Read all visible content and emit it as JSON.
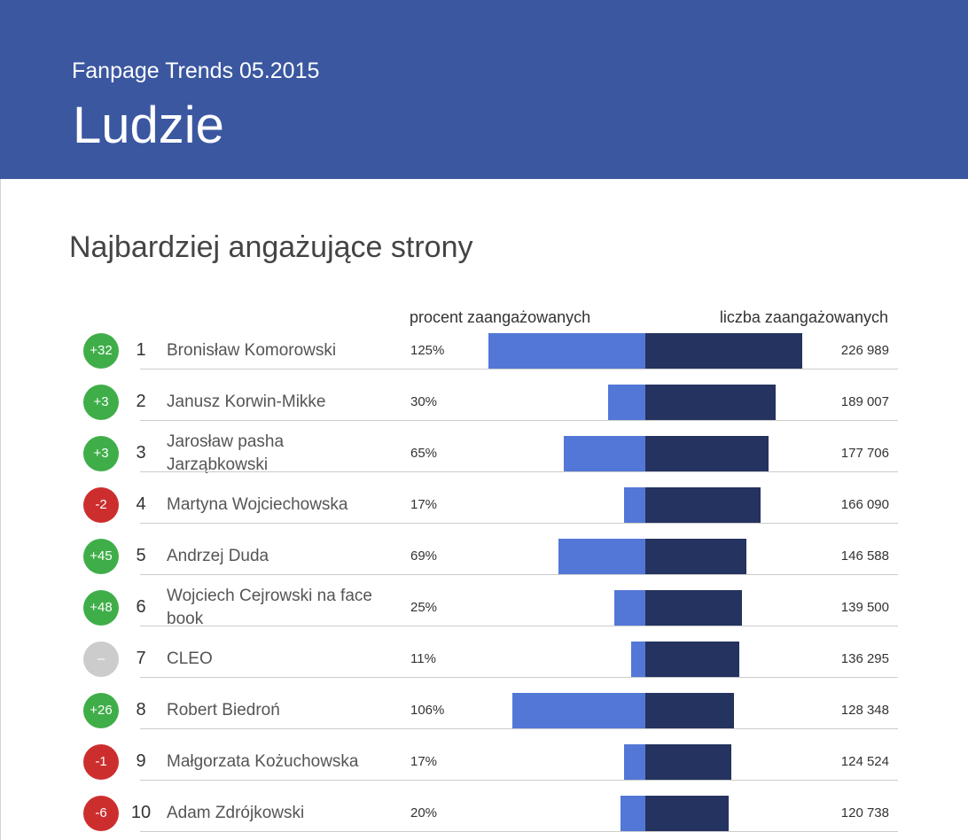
{
  "chart_data": {
    "type": "diverging-bar",
    "supertitle": "Fanpage Trends 05.2015",
    "title": "Ludzie",
    "subtitle": "Najbardziej angażujące strony",
    "categories": [
      "Bronisław Komorowski",
      "Janusz Korwin-Mikke",
      "Jarosław pasha Jarząbkowski",
      "Martyna Wojciechowska",
      "Andrzej Duda",
      "Wojciech Cejrowski na face book",
      "CLEO",
      "Robert Biedroń",
      "Małgorzata Kożuchowska",
      "Adam Zdrójkowski"
    ],
    "ranks": [
      1,
      2,
      3,
      4,
      5,
      6,
      7,
      8,
      9,
      10
    ],
    "rank_changes": [
      "+32",
      "+3",
      "+3",
      "-2",
      "+45",
      "+48",
      "–",
      "+26",
      "-1",
      "-6"
    ],
    "series": [
      {
        "name": "procent zaangażowanych",
        "color": "#5277d6",
        "values": [
          125,
          30,
          65,
          17,
          69,
          25,
          11,
          106,
          17,
          20
        ],
        "value_labels": [
          "125%",
          "30%",
          "65%",
          "17%",
          "69%",
          "25%",
          "11%",
          "106%",
          "17%",
          "20%"
        ]
      },
      {
        "name": "liczba zaangażowanych",
        "color": "#24335f",
        "values": [
          226989,
          189007,
          177706,
          166090,
          146588,
          139500,
          136295,
          128348,
          124524,
          120738
        ],
        "value_labels": [
          "226 989",
          "189 007",
          "177 706",
          "166 090",
          "146 588",
          "139 500",
          "136 295",
          "128 348",
          "124 524",
          "120 738"
        ]
      }
    ]
  }
}
